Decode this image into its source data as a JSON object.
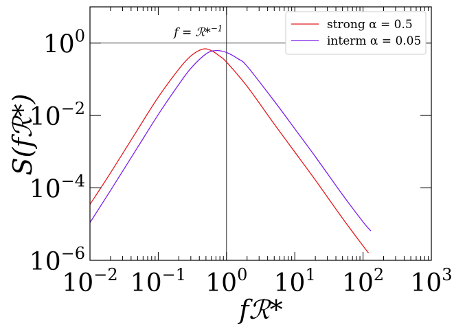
{
  "chart_data": {
    "type": "line",
    "xscale": "log",
    "yscale": "log",
    "xlim": [
      0.01,
      1000
    ],
    "ylim": [
      1e-06,
      10
    ],
    "xlabel": "fℛ*",
    "ylabel": "S(fℛ*)",
    "grid": false,
    "legend_position": "top-right",
    "x_ticks": [
      {
        "base": "10",
        "exp": "−2",
        "value": 0.01
      },
      {
        "base": "10",
        "exp": "−1",
        "value": 0.1
      },
      {
        "base": "10",
        "exp": "0",
        "value": 1
      },
      {
        "base": "10",
        "exp": "1",
        "value": 10
      },
      {
        "base": "10",
        "exp": "2",
        "value": 100
      },
      {
        "base": "10",
        "exp": "3",
        "value": 1000
      }
    ],
    "y_ticks": [
      {
        "base": "10",
        "exp": "−6",
        "value": 1e-06
      },
      {
        "base": "10",
        "exp": "−4",
        "value": 0.0001
      },
      {
        "base": "10",
        "exp": "−2",
        "value": 0.01
      },
      {
        "base": "10",
        "exp": "0",
        "value": 1
      }
    ],
    "reference_lines": [
      {
        "orientation": "horizontal",
        "value": 1
      },
      {
        "orientation": "vertical",
        "value": 1
      }
    ],
    "annotation": {
      "text": "f = ℛ*",
      "superscript": "−1",
      "x": 0.17,
      "y": 1.55
    },
    "series": [
      {
        "name": "strong α = 0.5",
        "color": "#e31a1c",
        "x": [
          0.01,
          0.02,
          0.05,
          0.1,
          0.2,
          0.3,
          0.45,
          0.6,
          0.8,
          1,
          2,
          5,
          10,
          20,
          50,
          100,
          120
        ],
        "y": [
          3.5e-05,
          0.00026,
          0.0041,
          0.032,
          0.19,
          0.44,
          0.68,
          0.62,
          0.43,
          0.3,
          0.064,
          0.0058,
          0.00098,
          0.000165,
          1.45e-05,
          2.5e-06,
          1.6e-06
        ]
      },
      {
        "name": "interm α = 0.05",
        "color": "#7b1fe8",
        "x": [
          0.01,
          0.02,
          0.05,
          0.1,
          0.2,
          0.3,
          0.5,
          0.7,
          1,
          1.5,
          2,
          5,
          10,
          20,
          50,
          100,
          130
        ],
        "y": [
          1.1e-05,
          8.5e-05,
          0.00133,
          0.0106,
          0.072,
          0.2,
          0.5,
          0.62,
          0.55,
          0.36,
          0.23,
          0.025,
          0.0043,
          0.00073,
          6.5e-05,
          1.15e-05,
          6.5e-06
        ]
      }
    ]
  }
}
